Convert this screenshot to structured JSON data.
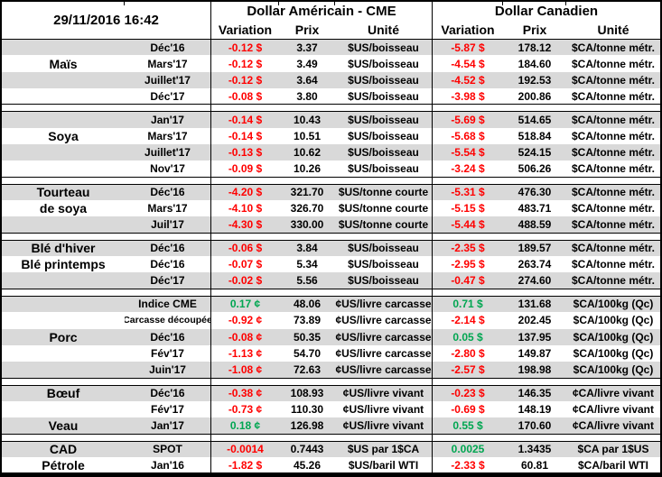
{
  "header": {
    "timestamp": "29/11/2016 16:42",
    "us_title": "Dollar Américain - CME",
    "ca_title": "Dollar Canadien",
    "col_variation": "Variation",
    "col_prix": "Prix",
    "col_unite": "Unité"
  },
  "colors": {
    "negative": "#FF0000",
    "positive": "#00A651",
    "stripe": "#D9D9D9",
    "border": "#000000"
  },
  "groups": [
    {
      "name": "mais",
      "rows": [
        {
          "label": "",
          "month": "Déc'16",
          "us_var": "-0.12 $",
          "us_prix": "3.37",
          "us_unit": "$US/boisseau",
          "ca_var": "-5.87 $",
          "ca_prix": "178.12",
          "ca_unit": "$CA/tonne métr."
        },
        {
          "label": "Maïs",
          "month": "Mars'17",
          "us_var": "-0.12 $",
          "us_prix": "3.49",
          "us_unit": "$US/boisseau",
          "ca_var": "-4.54 $",
          "ca_prix": "184.60",
          "ca_unit": "$CA/tonne métr."
        },
        {
          "label": "",
          "month": "Juillet'17",
          "us_var": "-0.12 $",
          "us_prix": "3.64",
          "us_unit": "$US/boisseau",
          "ca_var": "-4.52 $",
          "ca_prix": "192.53",
          "ca_unit": "$CA/tonne métr."
        },
        {
          "label": "",
          "month": "Déc'17",
          "us_var": "-0.08 $",
          "us_prix": "3.80",
          "us_unit": "$US/boisseau",
          "ca_var": "-3.98 $",
          "ca_prix": "200.86",
          "ca_unit": "$CA/tonne métr."
        }
      ]
    },
    {
      "name": "soya",
      "rows": [
        {
          "label": "",
          "month": "Jan'17",
          "us_var": "-0.14 $",
          "us_prix": "10.43",
          "us_unit": "$US/boisseau",
          "ca_var": "-5.69 $",
          "ca_prix": "514.65",
          "ca_unit": "$CA/tonne métr."
        },
        {
          "label": "Soya",
          "month": "Mars'17",
          "us_var": "-0.14 $",
          "us_prix": "10.51",
          "us_unit": "$US/boisseau",
          "ca_var": "-5.68 $",
          "ca_prix": "518.84",
          "ca_unit": "$CA/tonne métr."
        },
        {
          "label": "",
          "month": "Juillet'17",
          "us_var": "-0.13 $",
          "us_prix": "10.62",
          "us_unit": "$US/boisseau",
          "ca_var": "-5.54 $",
          "ca_prix": "524.15",
          "ca_unit": "$CA/tonne métr."
        },
        {
          "label": "",
          "month": "Nov'17",
          "us_var": "-0.09 $",
          "us_prix": "10.26",
          "us_unit": "$US/boisseau",
          "ca_var": "-3.24 $",
          "ca_prix": "506.26",
          "ca_unit": "$CA/tonne métr."
        }
      ]
    },
    {
      "name": "tourteau-de-soya",
      "rows": [
        {
          "label": "Tourteau",
          "month": "Déc'16",
          "us_var": "-4.20 $",
          "us_prix": "321.70",
          "us_unit": "$US/tonne courte",
          "ca_var": "-5.31 $",
          "ca_prix": "476.30",
          "ca_unit": "$CA/tonne métr."
        },
        {
          "label": "de soya",
          "month": "Mars'17",
          "us_var": "-4.10 $",
          "us_prix": "326.70",
          "us_unit": "$US/tonne courte",
          "ca_var": "-5.15 $",
          "ca_prix": "483.71",
          "ca_unit": "$CA/tonne métr."
        },
        {
          "label": "",
          "month": "Juil'17",
          "us_var": "-4.30 $",
          "us_prix": "330.00",
          "us_unit": "$US/tonne courte",
          "ca_var": "-5.44 $",
          "ca_prix": "488.59",
          "ca_unit": "$CA/tonne métr."
        }
      ]
    },
    {
      "name": "ble",
      "rows": [
        {
          "label": "Blé d'hiver",
          "month": "Déc'16",
          "us_var": "-0.06 $",
          "us_prix": "3.84",
          "us_unit": "$US/boisseau",
          "ca_var": "-2.35 $",
          "ca_prix": "189.57",
          "ca_unit": "$CA/tonne métr."
        },
        {
          "label": "Blé printemps",
          "month": "Déc'16",
          "us_var": "-0.07 $",
          "us_prix": "5.34",
          "us_unit": "$US/boisseau",
          "ca_var": "-2.95 $",
          "ca_prix": "263.74",
          "ca_unit": "$CA/tonne métr."
        },
        {
          "label": "",
          "month": "Déc'17",
          "us_var": "-0.02 $",
          "us_prix": "5.56",
          "us_unit": "$US/boisseau",
          "ca_var": "-0.47 $",
          "ca_prix": "274.60",
          "ca_unit": "$CA/tonne métr."
        }
      ]
    },
    {
      "name": "porc",
      "rows": [
        {
          "label": "",
          "month": "Indice CME",
          "us_var": "0.17 ¢",
          "us_prix": "48.06",
          "us_unit": "¢US/livre carcasse",
          "ca_var": "0.71 $",
          "ca_prix": "131.68",
          "ca_unit": "$CA/100kg (Qc)"
        },
        {
          "label": "",
          "month": "Carcasse découpée",
          "us_var": "-0.92 ¢",
          "us_prix": "73.89",
          "us_unit": "¢US/livre carcasse",
          "ca_var": "-2.14 $",
          "ca_prix": "202.45",
          "ca_unit": "$CA/100kg (Qc)"
        },
        {
          "label": "Porc",
          "month": "Déc'16",
          "us_var": "-0.08 ¢",
          "us_prix": "50.35",
          "us_unit": "¢US/livre carcasse",
          "ca_var": "0.05 $",
          "ca_prix": "137.95",
          "ca_unit": "$CA/100kg (Qc)"
        },
        {
          "label": "",
          "month": "Fév'17",
          "us_var": "-1.13 ¢",
          "us_prix": "54.70",
          "us_unit": "¢US/livre carcasse",
          "ca_var": "-2.80 $",
          "ca_prix": "149.87",
          "ca_unit": "$CA/100kg (Qc)"
        },
        {
          "label": "",
          "month": "Juin'17",
          "us_var": "-1.08 ¢",
          "us_prix": "72.63",
          "us_unit": "¢US/livre carcasse",
          "ca_var": "-2.57 $",
          "ca_prix": "198.98",
          "ca_unit": "$CA/100kg (Qc)"
        }
      ]
    },
    {
      "name": "boeuf-veau",
      "rows": [
        {
          "label": "Bœuf",
          "month": "Déc'16",
          "us_var": "-0.38 ¢",
          "us_prix": "108.93",
          "us_unit": "¢US/livre vivant",
          "ca_var": "-0.23 $",
          "ca_prix": "146.35",
          "ca_unit": "¢CA/livre vivant"
        },
        {
          "label": "",
          "month": "Fév'17",
          "us_var": "-0.73 ¢",
          "us_prix": "110.30",
          "us_unit": "¢US/livre vivant",
          "ca_var": "-0.69 $",
          "ca_prix": "148.19",
          "ca_unit": "¢CA/livre vivant"
        },
        {
          "label": "Veau",
          "month": "Jan'17",
          "us_var": "0.18 ¢",
          "us_prix": "126.98",
          "us_unit": "¢US/livre vivant",
          "ca_var": "0.55 $",
          "ca_prix": "170.60",
          "ca_unit": "¢CA/livre vivant"
        }
      ]
    },
    {
      "name": "cad-petrole",
      "rows": [
        {
          "label": "CAD",
          "month": "SPOT",
          "us_var": "-0.0014",
          "us_prix": "0.7443",
          "us_unit": "$US par 1$CA",
          "ca_var": "0.0025",
          "ca_prix": "1.3435",
          "ca_unit": "$CA par 1$US"
        },
        {
          "label": "Pétrole",
          "month": "Jan'16",
          "us_var": "-1.82 $",
          "us_prix": "45.26",
          "us_unit": "$US/baril WTI",
          "ca_var": "-2.33 $",
          "ca_prix": "60.81",
          "ca_unit": "$CA/baril WTI"
        }
      ]
    }
  ]
}
